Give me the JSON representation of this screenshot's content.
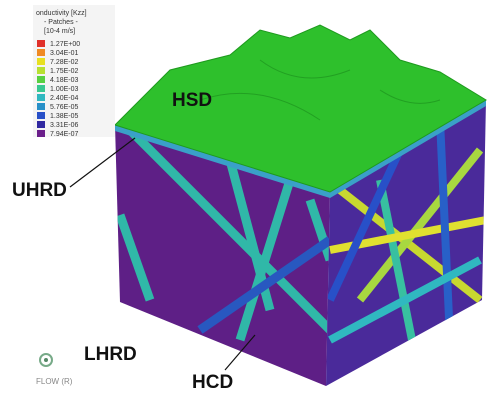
{
  "legend": {
    "title": "onductivity [Kzz]",
    "subtitle": "- Patches -",
    "units": "[10-4 m/s]",
    "entries": [
      {
        "label": "1.27E+00",
        "color": "#e0302a"
      },
      {
        "label": "3.04E-01",
        "color": "#f08a24"
      },
      {
        "label": "7.28E-02",
        "color": "#e8e020"
      },
      {
        "label": "1.75E-02",
        "color": "#b8e030"
      },
      {
        "label": "4.18E-03",
        "color": "#58d040"
      },
      {
        "label": "1.00E-03",
        "color": "#38c890"
      },
      {
        "label": "2.40E-04",
        "color": "#30b8c0"
      },
      {
        "label": "5.76E-05",
        "color": "#2890c8"
      },
      {
        "label": "1.38E-05",
        "color": "#2850c8"
      },
      {
        "label": "3.31E-06",
        "color": "#3028a0"
      },
      {
        "label": "7.94E-07",
        "color": "#6a1e8a"
      }
    ]
  },
  "labels": {
    "hsd": "HSD",
    "uhrd": "UHRD",
    "lhrd": "LHRD",
    "hcd": "HCD"
  },
  "compass": {
    "label": "FLOW (R)"
  }
}
